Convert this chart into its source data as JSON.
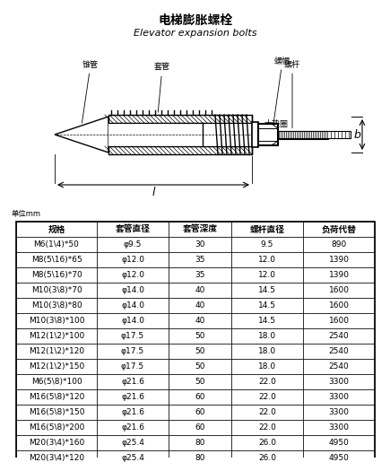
{
  "title_cn": "电梯膨胀螺栓",
  "title_en": "Elevator expansion bolts",
  "unit_label": "单位mm",
  "headers": [
    "负荷代替",
    "螺杆直径",
    "套管深度",
    "套管直径",
    "规格"
  ],
  "rows": [
    [
      "890",
      "9.5",
      "30",
      "φ9.5",
      "M6(1\\4)*50"
    ],
    [
      "1390",
      "12.0",
      "35",
      "φ12.0",
      "M8(5\\16)*65"
    ],
    [
      "1390",
      "12.0",
      "35",
      "φ12.0",
      "M8(5\\16)*70"
    ],
    [
      "1600",
      "14.5",
      "40",
      "φ14.0",
      "M10(3\\8)*70"
    ],
    [
      "1600",
      "14.5",
      "40",
      "φ14.0",
      "M10(3\\8)*80"
    ],
    [
      "1600",
      "14.5",
      "40",
      "φ14.0",
      "M10(3\\8)*100"
    ],
    [
      "2540",
      "18.0",
      "50",
      "φ17.5",
      "M12(1\\2)*100"
    ],
    [
      "2540",
      "18.0",
      "50",
      "φ17.5",
      "M12(1\\2)*120"
    ],
    [
      "2540",
      "18.0",
      "50",
      "φ17.5",
      "M12(1\\2)*150"
    ],
    [
      "3300",
      "22.0",
      "50",
      "φ21.6",
      "M6(5\\8)*100"
    ],
    [
      "3300",
      "22.0",
      "60",
      "φ21.6",
      "M16(5\\8)*120"
    ],
    [
      "3300",
      "22.0",
      "60",
      "φ21.6",
      "M16(5\\8)*150"
    ],
    [
      "3300",
      "22.0",
      "60",
      "φ21.6",
      "M16(5\\8)*200"
    ],
    [
      "4950",
      "26.0",
      "80",
      "φ25.4",
      "M20(3\\4)*160"
    ],
    [
      "4950",
      "26.0",
      "80",
      "φ25.4",
      "M20(3\\4)*120"
    ]
  ],
  "label_cone": "锥管",
  "label_sleeve": "套管",
  "label_rod": "螺杆",
  "label_nut": "螺帽",
  "label_washer": "大垫圈",
  "label_b": "b",
  "label_l": "l",
  "bg_color": "#ffffff",
  "line_color": "#000000"
}
